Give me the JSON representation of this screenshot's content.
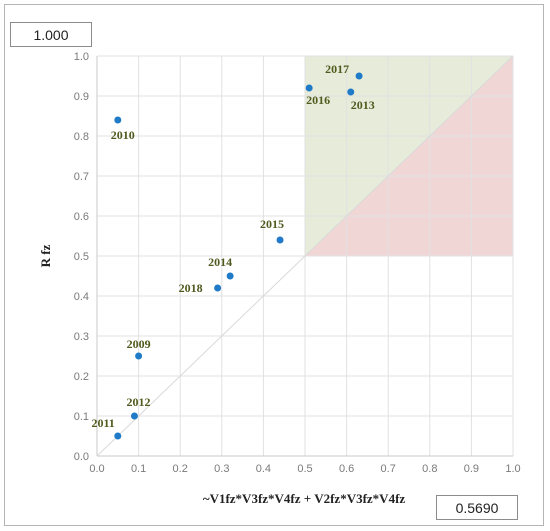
{
  "header_value": "1.000",
  "footer_value": "0.5690",
  "chart_data": {
    "type": "scatter",
    "xlabel": "~V1fz*V3fz*V4fz + V2fz*V3fz*V4fz",
    "ylabel": "R fz",
    "xlim": [
      0,
      1
    ],
    "ylim": [
      0,
      1
    ],
    "xticks": [
      "0.0",
      "0.1",
      "0.2",
      "0.3",
      "0.4",
      "0.5",
      "0.6",
      "0.7",
      "0.8",
      "0.9",
      "1.0"
    ],
    "yticks": [
      "0.0",
      "0.1",
      "0.2",
      "0.3",
      "0.4",
      "0.5",
      "0.6",
      "0.7",
      "0.8",
      "0.9",
      "1.0"
    ],
    "grid": true,
    "diagonal": true,
    "regions": [
      {
        "color": "#e7ecda",
        "type": "upper-triangle",
        "x": [
          0.5,
          1
        ],
        "y": [
          0.5,
          1
        ]
      },
      {
        "color": "#f1d6d6",
        "type": "lower-triangle",
        "x": [
          0.5,
          1
        ],
        "y": [
          0.5,
          1
        ]
      }
    ],
    "point_color": "#1f7bc7",
    "points": [
      {
        "label": "2009",
        "x": 0.1,
        "y": 0.25
      },
      {
        "label": "2010",
        "x": 0.05,
        "y": 0.84
      },
      {
        "label": "2011",
        "x": 0.05,
        "y": 0.05
      },
      {
        "label": "2012",
        "x": 0.09,
        "y": 0.1
      },
      {
        "label": "2013",
        "x": 0.61,
        "y": 0.91
      },
      {
        "label": "2014",
        "x": 0.32,
        "y": 0.45
      },
      {
        "label": "2015",
        "x": 0.44,
        "y": 0.54
      },
      {
        "label": "2016",
        "x": 0.51,
        "y": 0.92
      },
      {
        "label": "2017",
        "x": 0.63,
        "y": 0.95
      },
      {
        "label": "2018",
        "x": 0.29,
        "y": 0.42
      }
    ]
  }
}
